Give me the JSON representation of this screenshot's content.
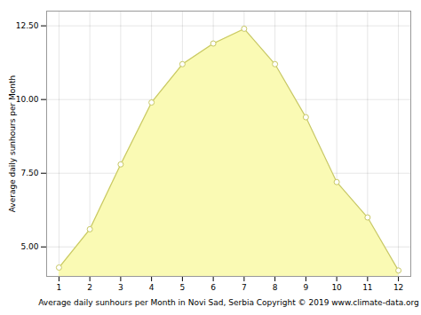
{
  "chart_data": {
    "type": "area",
    "xlabel": "Average daily sunhours per Month in Novi Sad, Serbia Copyright © 2019 www.climate-data.org",
    "ylabel": "Average daily sunhours per Month",
    "x": [
      1,
      2,
      3,
      4,
      5,
      6,
      7,
      8,
      9,
      10,
      11,
      12
    ],
    "values": [
      4.3,
      5.6,
      7.8,
      9.9,
      11.2,
      11.9,
      12.4,
      11.2,
      9.4,
      7.2,
      6.0,
      4.2
    ],
    "color": "#C8C864",
    "marker": "circle",
    "xlim": [
      0.6,
      12.4
    ],
    "ylim": [
      4.0,
      13.0
    ],
    "xticks": [
      1,
      2,
      3,
      4,
      5,
      6,
      7,
      8,
      9,
      10,
      11,
      12
    ],
    "yticks": [
      {
        "value": 5,
        "label": "5.00"
      },
      {
        "value": 7.5,
        "label": "7.50"
      },
      {
        "value": 10,
        "label": "10.00"
      },
      {
        "value": 12.5,
        "label": "12.50"
      }
    ],
    "grid": true
  }
}
